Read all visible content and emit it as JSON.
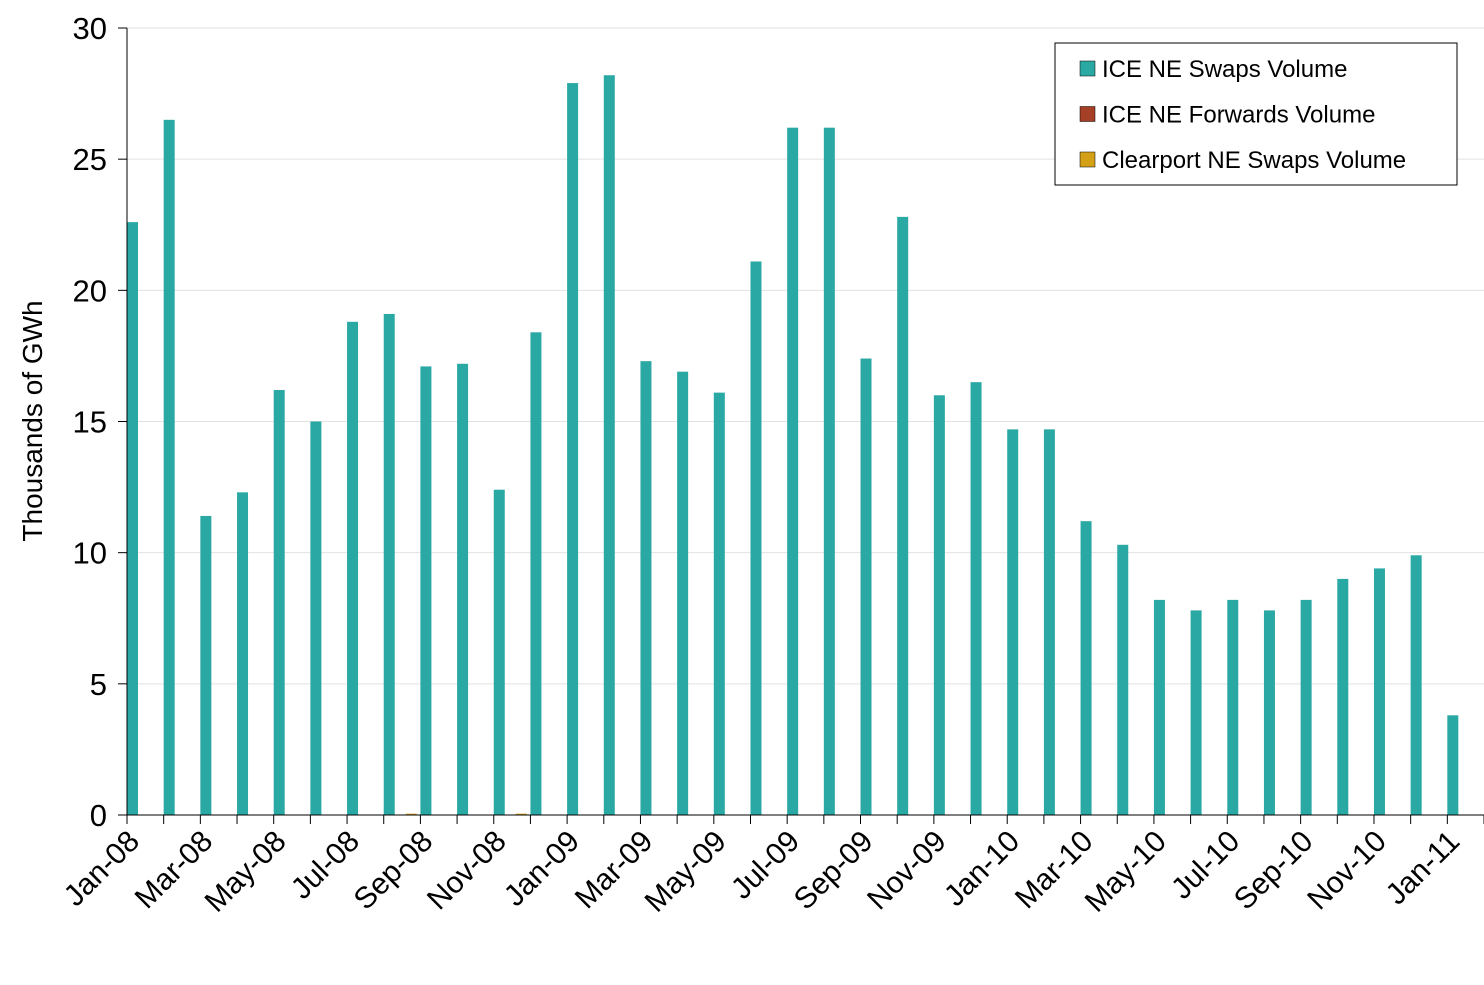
{
  "chart_data": {
    "type": "bar",
    "ylabel": "Thousands of GWh",
    "categories": [
      "Jan-08",
      null,
      "Mar-08",
      null,
      "May-08",
      null,
      "Jul-08",
      null,
      "Sep-08",
      null,
      "Nov-08",
      null,
      "Jan-09",
      null,
      "Mar-09",
      null,
      "May-09",
      null,
      "Jul-09",
      null,
      "Sep-09",
      null,
      "Nov-09",
      null,
      "Jan-10",
      null,
      "Mar-10",
      null,
      "May-10",
      null,
      "Jul-10",
      null,
      "Sep-10",
      null,
      "Nov-10",
      null,
      "Jan-11"
    ],
    "series": [
      {
        "name": "ICE NE Swaps Volume",
        "color": "#2aa8a4",
        "values": [
          22.6,
          26.5,
          11.4,
          12.3,
          16.2,
          15.0,
          18.8,
          19.1,
          17.1,
          17.2,
          12.4,
          18.4,
          27.9,
          28.2,
          17.3,
          16.9,
          16.1,
          21.1,
          26.2,
          26.2,
          17.4,
          22.8,
          16.0,
          16.5,
          14.7,
          14.7,
          11.2,
          10.3,
          8.2,
          7.8,
          8.2,
          7.8,
          8.2,
          9.0,
          9.4,
          9.9,
          3.8
        ]
      },
      {
        "name": "ICE NE Forwards Volume",
        "color": "#a53f26",
        "values": [
          0,
          0,
          0,
          0,
          0,
          0,
          0,
          0,
          0,
          0,
          0,
          0,
          0,
          0,
          0,
          0,
          0,
          0,
          0,
          0,
          0,
          0,
          0,
          0,
          0,
          0,
          0,
          0,
          0,
          0,
          0,
          0,
          0,
          0,
          0,
          0,
          0
        ]
      },
      {
        "name": "Clearport NE Swaps Volume",
        "color": "#d4a017",
        "values": [
          0,
          0,
          0,
          0,
          0,
          0,
          0,
          0.05,
          0,
          0,
          0.05,
          0,
          0,
          0,
          0,
          0,
          0,
          0,
          0,
          0,
          0,
          0,
          0,
          0,
          0,
          0,
          0,
          0,
          0,
          0,
          0,
          0,
          0,
          0,
          0,
          0,
          0
        ]
      }
    ],
    "ylim": [
      0,
      30
    ],
    "yticks": [
      0,
      5,
      10,
      15,
      20,
      25,
      30
    ],
    "grid": true,
    "legend": "upper-right"
  }
}
